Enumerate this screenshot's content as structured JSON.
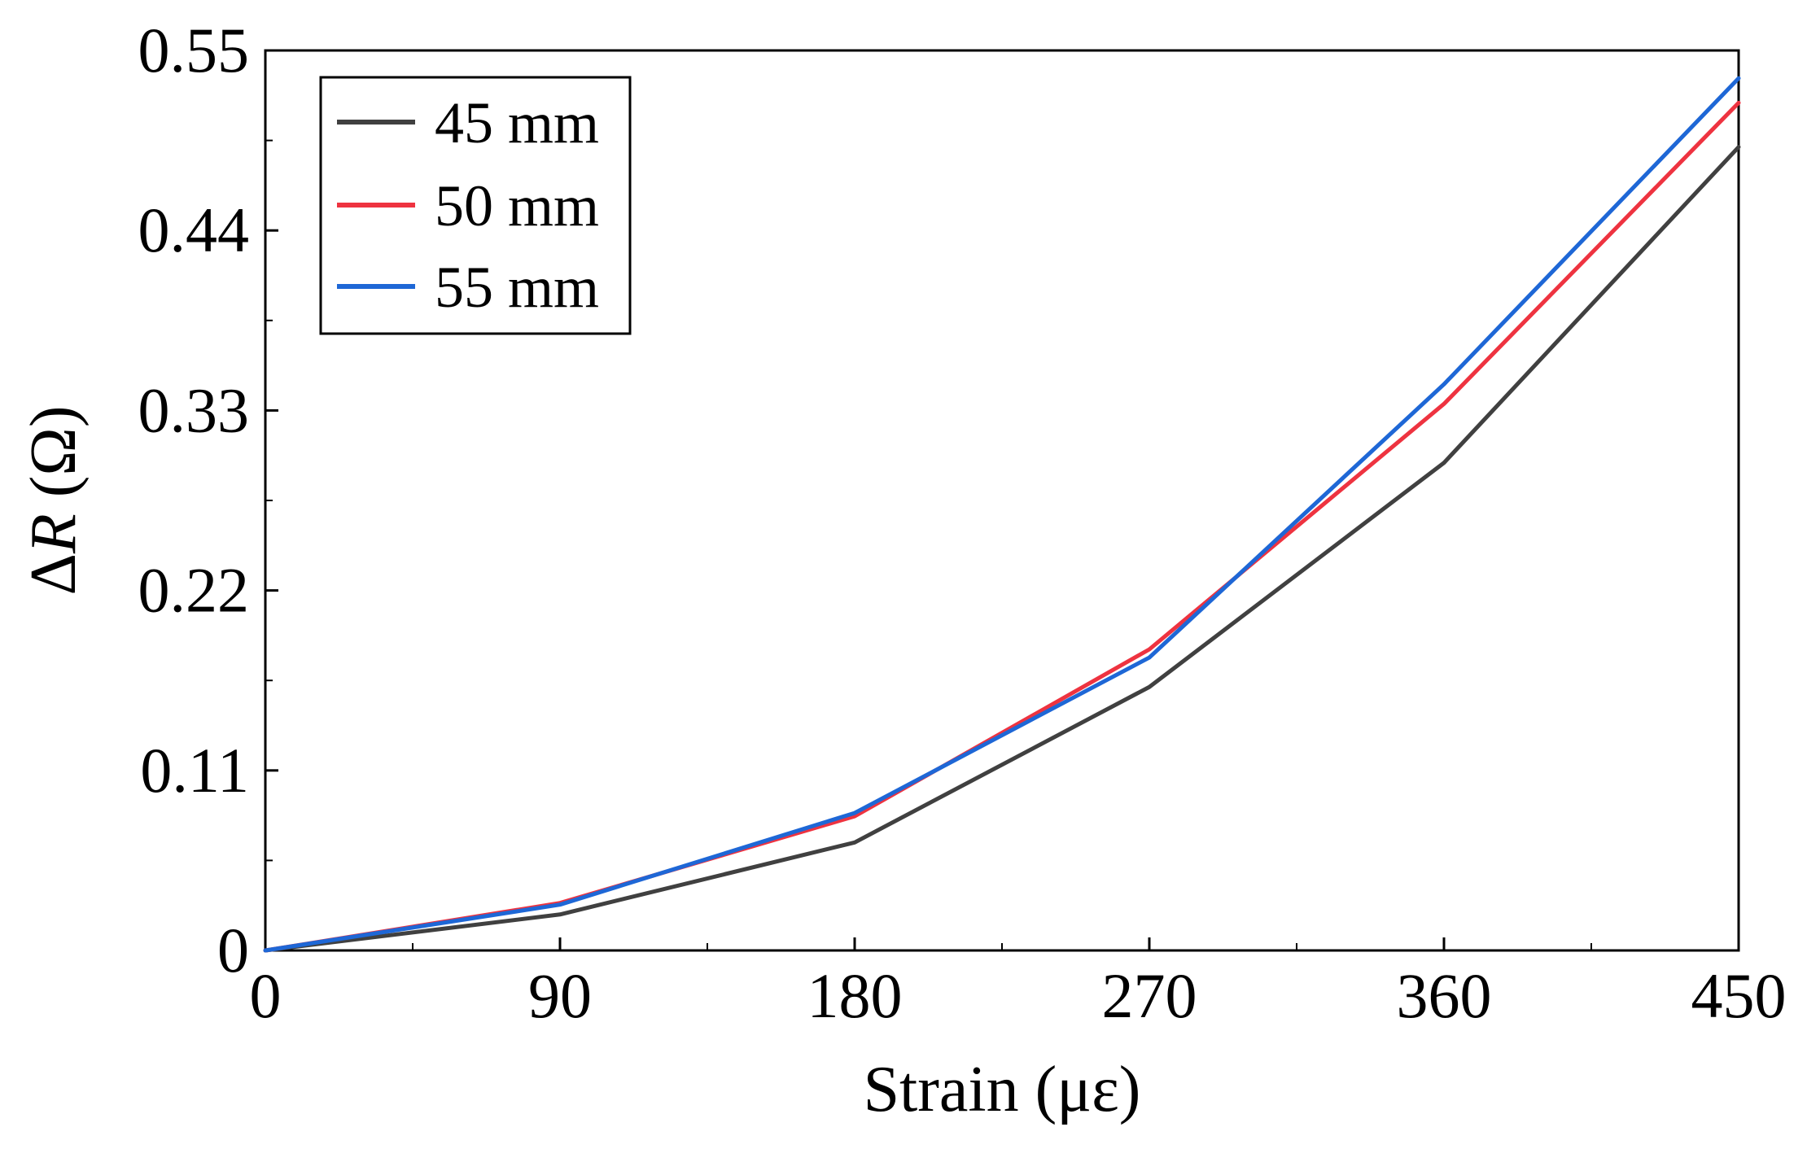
{
  "chart_data": {
    "type": "line",
    "title": "",
    "xlabel": "Strain (με)",
    "ylabel_prefix": "Δ",
    "ylabel_var": "R",
    "ylabel_unit": " (Ω)",
    "xlim": [
      0,
      450
    ],
    "ylim": [
      0,
      0.55
    ],
    "xticks": [
      0,
      90,
      180,
      270,
      360,
      450
    ],
    "xtick_labels": [
      "0",
      "90",
      "180",
      "270",
      "360",
      "450"
    ],
    "xminor": [
      45,
      135,
      225,
      315,
      405
    ],
    "yticks": [
      0,
      0.11,
      0.22,
      0.33,
      0.44,
      0.55
    ],
    "ytick_labels": [
      "0",
      "0.11",
      "0.22",
      "0.33",
      "0.44",
      "0.55"
    ],
    "yminor": [
      0.055,
      0.165,
      0.275,
      0.385,
      0.495
    ],
    "grid": false,
    "legend_position": "top-left",
    "x": [
      0,
      90,
      180,
      270,
      360,
      450
    ],
    "series": [
      {
        "name": "45 mm",
        "color": "#404040",
        "values": [
          0,
          0.022,
          0.066,
          0.161,
          0.298,
          0.491
        ]
      },
      {
        "name": "50 mm",
        "color": "#ee3340",
        "values": [
          0,
          0.029,
          0.082,
          0.184,
          0.334,
          0.518
        ]
      },
      {
        "name": "55 mm",
        "color": "#1e67d6",
        "values": [
          0,
          0.028,
          0.084,
          0.179,
          0.346,
          0.533
        ]
      }
    ]
  }
}
